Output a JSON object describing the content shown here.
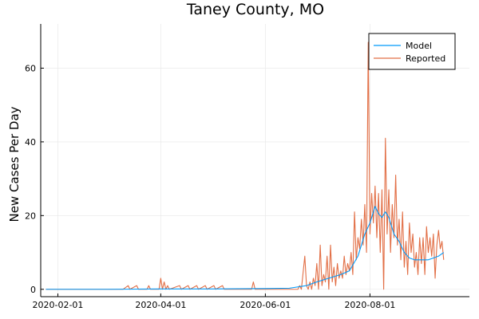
{
  "chart_data": {
    "type": "line",
    "title": "Taney County, MO",
    "xlabel": "",
    "ylabel": "New Cases Per Day",
    "x_ticks": [
      "2020-02-01",
      "2020-04-01",
      "2020-06-01",
      "2020-08-01"
    ],
    "y_ticks": [
      "0",
      "20",
      "40",
      "60"
    ],
    "xlim": [
      "2020-01-22",
      "2020-09-28"
    ],
    "ylim": [
      -2,
      72
    ],
    "grid": true,
    "legend_position": "top-right",
    "colors": {
      "model": "#009AFA",
      "reported": "#E26F46"
    },
    "series": [
      {
        "name": "Model",
        "points": [
          [
            "2020-01-25",
            0
          ],
          [
            "2020-03-01",
            0
          ],
          [
            "2020-04-01",
            0.1
          ],
          [
            "2020-05-01",
            0.1
          ],
          [
            "2020-06-01",
            0.2
          ],
          [
            "2020-06-15",
            0.3
          ],
          [
            "2020-06-25",
            1
          ],
          [
            "2020-07-01",
            2
          ],
          [
            "2020-07-08",
            3
          ],
          [
            "2020-07-15",
            4
          ],
          [
            "2020-07-20",
            5
          ],
          [
            "2020-07-25",
            9
          ],
          [
            "2020-07-29",
            15
          ],
          [
            "2020-08-01",
            18
          ],
          [
            "2020-08-03",
            21
          ],
          [
            "2020-08-04",
            22.5
          ],
          [
            "2020-08-06",
            20.5
          ],
          [
            "2020-08-08",
            19.5
          ],
          [
            "2020-08-10",
            21
          ],
          [
            "2020-08-12",
            19.5
          ],
          [
            "2020-08-15",
            15
          ],
          [
            "2020-08-18",
            13
          ],
          [
            "2020-08-21",
            10
          ],
          [
            "2020-08-24",
            8.5
          ],
          [
            "2020-08-27",
            8
          ],
          [
            "2020-08-31",
            8
          ],
          [
            "2020-09-04",
            8
          ],
          [
            "2020-09-07",
            8.5
          ],
          [
            "2020-09-10",
            9
          ],
          [
            "2020-09-13",
            10
          ]
        ]
      },
      {
        "name": "Reported",
        "points": [
          [
            "2020-01-25",
            0
          ],
          [
            "2020-03-10",
            0
          ],
          [
            "2020-03-13",
            1
          ],
          [
            "2020-03-14",
            0
          ],
          [
            "2020-03-18",
            1
          ],
          [
            "2020-03-19",
            0
          ],
          [
            "2020-03-24",
            0
          ],
          [
            "2020-03-25",
            1
          ],
          [
            "2020-03-26",
            0
          ],
          [
            "2020-03-31",
            0
          ],
          [
            "2020-04-01",
            3
          ],
          [
            "2020-04-02",
            0
          ],
          [
            "2020-04-03",
            2
          ],
          [
            "2020-04-04",
            0
          ],
          [
            "2020-04-05",
            1
          ],
          [
            "2020-04-06",
            0
          ],
          [
            "2020-04-12",
            1
          ],
          [
            "2020-04-13",
            0
          ],
          [
            "2020-04-17",
            1
          ],
          [
            "2020-04-18",
            0
          ],
          [
            "2020-04-22",
            1
          ],
          [
            "2020-04-23",
            0
          ],
          [
            "2020-04-27",
            1
          ],
          [
            "2020-04-28",
            0
          ],
          [
            "2020-05-02",
            1
          ],
          [
            "2020-05-03",
            0
          ],
          [
            "2020-05-07",
            1
          ],
          [
            "2020-05-08",
            0
          ],
          [
            "2020-05-24",
            0
          ],
          [
            "2020-05-25",
            2
          ],
          [
            "2020-05-26",
            0
          ],
          [
            "2020-06-20",
            0
          ],
          [
            "2020-06-21",
            1
          ],
          [
            "2020-06-22",
            0
          ],
          [
            "2020-06-24",
            9
          ],
          [
            "2020-06-25",
            1
          ],
          [
            "2020-06-26",
            0
          ],
          [
            "2020-06-27",
            2
          ],
          [
            "2020-06-28",
            0
          ],
          [
            "2020-06-29",
            3
          ],
          [
            "2020-06-30",
            1
          ],
          [
            "2020-07-01",
            7
          ],
          [
            "2020-07-02",
            0
          ],
          [
            "2020-07-03",
            12
          ],
          [
            "2020-07-04",
            1
          ],
          [
            "2020-07-05",
            4
          ],
          [
            "2020-07-06",
            2
          ],
          [
            "2020-07-07",
            9
          ],
          [
            "2020-07-08",
            0
          ],
          [
            "2020-07-09",
            12
          ],
          [
            "2020-07-10",
            2
          ],
          [
            "2020-07-11",
            6
          ],
          [
            "2020-07-12",
            1
          ],
          [
            "2020-07-13",
            7
          ],
          [
            "2020-07-14",
            3
          ],
          [
            "2020-07-15",
            5
          ],
          [
            "2020-07-16",
            3
          ],
          [
            "2020-07-17",
            9
          ],
          [
            "2020-07-18",
            4
          ],
          [
            "2020-07-19",
            7
          ],
          [
            "2020-07-20",
            5
          ],
          [
            "2020-07-21",
            10
          ],
          [
            "2020-07-22",
            4
          ],
          [
            "2020-07-23",
            21
          ],
          [
            "2020-07-24",
            8
          ],
          [
            "2020-07-25",
            14
          ],
          [
            "2020-07-26",
            11
          ],
          [
            "2020-07-27",
            19
          ],
          [
            "2020-07-28",
            12
          ],
          [
            "2020-07-29",
            23
          ],
          [
            "2020-07-30",
            10
          ],
          [
            "2020-07-31",
            67
          ],
          [
            "2020-08-01",
            15
          ],
          [
            "2020-08-02",
            26
          ],
          [
            "2020-08-03",
            18
          ],
          [
            "2020-08-04",
            28
          ],
          [
            "2020-08-05",
            14
          ],
          [
            "2020-08-06",
            26
          ],
          [
            "2020-08-07",
            10
          ],
          [
            "2020-08-08",
            27
          ],
          [
            "2020-08-09",
            0
          ],
          [
            "2020-08-10",
            41
          ],
          [
            "2020-08-11",
            15
          ],
          [
            "2020-08-12",
            27
          ],
          [
            "2020-08-13",
            10
          ],
          [
            "2020-08-14",
            23
          ],
          [
            "2020-08-15",
            14
          ],
          [
            "2020-08-16",
            31
          ],
          [
            "2020-08-17",
            12
          ],
          [
            "2020-08-18",
            19
          ],
          [
            "2020-08-19",
            8
          ],
          [
            "2020-08-20",
            21
          ],
          [
            "2020-08-21",
            6
          ],
          [
            "2020-08-22",
            13
          ],
          [
            "2020-08-23",
            4
          ],
          [
            "2020-08-24",
            18
          ],
          [
            "2020-08-25",
            10
          ],
          [
            "2020-08-26",
            15
          ],
          [
            "2020-08-27",
            6
          ],
          [
            "2020-08-28",
            10
          ],
          [
            "2020-08-29",
            4
          ],
          [
            "2020-08-30",
            14
          ],
          [
            "2020-08-31",
            7
          ],
          [
            "2020-09-01",
            14
          ],
          [
            "2020-09-02",
            4
          ],
          [
            "2020-09-03",
            17
          ],
          [
            "2020-09-04",
            10
          ],
          [
            "2020-09-05",
            14
          ],
          [
            "2020-09-06",
            9
          ],
          [
            "2020-09-07",
            15
          ],
          [
            "2020-09-08",
            3
          ],
          [
            "2020-09-09",
            12
          ],
          [
            "2020-09-10",
            16
          ],
          [
            "2020-09-11",
            11
          ],
          [
            "2020-09-12",
            13
          ],
          [
            "2020-09-13",
            8
          ]
        ]
      }
    ]
  }
}
